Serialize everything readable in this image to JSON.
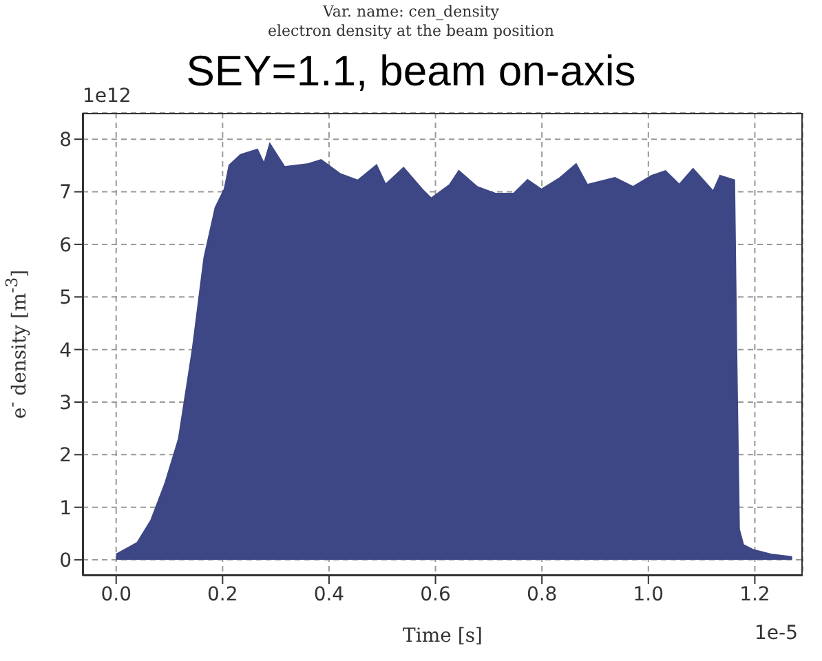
{
  "chart_data": {
    "type": "area",
    "title": "Var. name: cen_density",
    "subtitle": "electron density at the beam position",
    "annotations": [
      "SEY=1.1, beam on-axis",
      "1e12",
      "1e-5"
    ],
    "xlabel": "Time [s]",
    "ylabel": "e$^{-}$ density [m$^{-3}$]",
    "xlim": [
      -0.063,
      1.29
    ],
    "ylim": [
      -0.3,
      8.5
    ],
    "xticks": [
      {
        "value": 0,
        "label": "0.0"
      },
      {
        "value": 0.2,
        "label": "0.2"
      },
      {
        "value": 0.4,
        "label": "0.4"
      },
      {
        "value": 0.6,
        "label": "0.6"
      },
      {
        "value": 0.8,
        "label": "0.8"
      },
      {
        "value": 1,
        "label": "1.0"
      },
      {
        "value": 1.2,
        "label": "1.2"
      }
    ],
    "yticks": [
      0,
      1,
      2,
      3,
      4,
      5,
      6,
      7,
      8
    ],
    "grid": true,
    "line_style": "dashed",
    "series": [
      {
        "color": "#3d4785",
        "x": [
          0,
          0.04,
          0.066,
          0.092,
          0.118,
          0.144,
          0.166,
          0.187,
          0.204,
          0.213,
          0.234,
          0.265,
          0.278,
          0.289,
          0.316,
          0.359,
          0.385,
          0.42,
          0.454,
          0.489,
          0.506,
          0.54,
          0.575,
          0.592,
          0.627,
          0.644,
          0.678,
          0.713,
          0.747,
          0.773,
          0.799,
          0.834,
          0.864,
          0.885,
          0.937,
          0.971,
          1.006,
          1.032,
          1.058,
          1.084,
          1.122,
          1.135,
          1.161,
          1.165,
          1.17,
          1.178,
          1.196,
          1.23,
          1.27
        ],
        "values": [
          0.1,
          0.32,
          0.75,
          1.44,
          2.3,
          4.0,
          5.75,
          6.7,
          7.05,
          7.5,
          7.7,
          7.8,
          7.52,
          7.9,
          7.47,
          7.52,
          7.6,
          7.34,
          7.21,
          7.5,
          7.13,
          7.45,
          7.04,
          6.87,
          7.13,
          7.39,
          7.09,
          6.96,
          6.96,
          7.22,
          7.04,
          7.26,
          7.52,
          7.13,
          7.26,
          7.09,
          7.3,
          7.39,
          7.13,
          7.43,
          7.0,
          7.3,
          7.22,
          4.0,
          0.58,
          0.28,
          0.19,
          0.1,
          0.05
        ]
      }
    ]
  }
}
